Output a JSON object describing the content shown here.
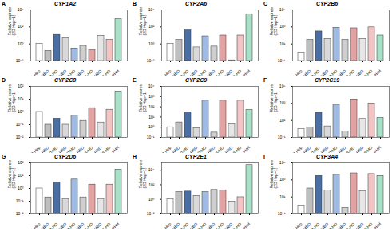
{
  "chart_data": [
    {
      "type": "bar",
      "panel": "A",
      "title": "CYP1A2",
      "y_label": "Relative expression (2D Hep=1)",
      "log": "y",
      "categories": [
        "2D Hep",
        "D-HBO",
        "D-HO",
        "D-HBO",
        "D-HO",
        "S-HBO",
        "S-HO",
        "S-HBO",
        "S-HO",
        "PHH"
      ],
      "colors": [
        "#ffffff",
        "#bfbfbf",
        "#4a6fa5",
        "#d9d9d9",
        "#9fbbe3",
        "#cfcfcf",
        "#e3a3a3",
        "#e6e6e6",
        "#f2c4c4",
        "#a8e0c8"
      ],
      "values": [
        1,
        0.15,
        12,
        5,
        0.3,
        0.6,
        0.2,
        9,
        3,
        900
      ],
      "ylim": [
        0.01,
        10000
      ],
      "yticks": [
        {
          "value": 0.01,
          "label": "10⁻²"
        },
        {
          "value": 1,
          "label": "10⁰"
        },
        {
          "value": 100,
          "label": "10²"
        },
        {
          "value": 10000,
          "label": "10⁴"
        }
      ]
    },
    {
      "type": "bar",
      "panel": "B",
      "title": "CYP2A6",
      "y_label": "Relative expression (2D Hep=1)",
      "log": "y",
      "categories": [
        "2D Hep",
        "D-HBO",
        "D-HO",
        "D-HBO",
        "D-HO",
        "S-HBO",
        "S-HO",
        "S-HBO",
        "S-HO",
        "PHH"
      ],
      "colors": [
        "#ffffff",
        "#bfbfbf",
        "#4a6fa5",
        "#d9d9d9",
        "#9fbbe3",
        "#cfcfcf",
        "#e3a3a3",
        "#e6e6e6",
        "#f2c4c4",
        "#a8e0c8"
      ],
      "values": [
        1,
        3,
        40,
        0.4,
        8,
        0.5,
        10,
        0.012,
        10,
        3000
      ],
      "ylim": [
        0.01,
        10000
      ],
      "yticks": [
        {
          "value": 0.01,
          "label": "10⁻²"
        },
        {
          "value": 1,
          "label": "10⁰"
        },
        {
          "value": 100,
          "label": "10²"
        },
        {
          "value": 10000,
          "label": "10⁴"
        }
      ]
    },
    {
      "type": "bar",
      "panel": "C",
      "title": "CYP2B6",
      "y_label": "Relative expression (2D Hep=1)",
      "log": "y",
      "categories": [
        "2D Hep",
        "D-HBO",
        "D-HO",
        "D-HBO",
        "D-HO",
        "S-HBO",
        "S-HO",
        "S-HBO",
        "S-HO",
        "PHH"
      ],
      "colors": [
        "#ffffff",
        "#bfbfbf",
        "#4a6fa5",
        "#d9d9d9",
        "#9fbbe3",
        "#cfcfcf",
        "#e3a3a3",
        "#e6e6e6",
        "#f2c4c4",
        "#a8e0c8"
      ],
      "values": [
        1,
        30,
        300,
        40,
        800,
        30,
        700,
        40,
        900,
        100
      ],
      "ylim": [
        0.1,
        100000
      ],
      "yticks": [
        {
          "value": 0.1,
          "label": "10⁻¹"
        },
        {
          "value": 10,
          "label": "10¹"
        },
        {
          "value": 1000,
          "label": "10³"
        },
        {
          "value": 100000,
          "label": "10⁵"
        }
      ]
    },
    {
      "type": "bar",
      "panel": "D",
      "title": "CYP2C8",
      "y_label": "Relative expression (2D Hep=1)",
      "log": "y",
      "categories": [
        "2D Hep",
        "D-HBO",
        "D-HO",
        "D-HBO",
        "D-HO",
        "S-HBO",
        "S-HO",
        "S-HBO",
        "S-HO",
        "PHH"
      ],
      "colors": [
        "#ffffff",
        "#bfbfbf",
        "#4a6fa5",
        "#d9d9d9",
        "#9fbbe3",
        "#cfcfcf",
        "#e3a3a3",
        "#e6e6e6",
        "#f2c4c4",
        "#a8e0c8"
      ],
      "values": [
        1,
        0.1,
        0.3,
        0.1,
        0.5,
        0.2,
        2,
        0.15,
        1.5,
        40
      ],
      "ylim": [
        0.01,
        100
      ],
      "yticks": [
        {
          "value": 0.01,
          "label": "10⁻²"
        },
        {
          "value": 0.1,
          "label": "10⁻¹"
        },
        {
          "value": 1,
          "label": "10⁰"
        },
        {
          "value": 10,
          "label": "10¹"
        },
        {
          "value": 100,
          "label": "10²"
        }
      ]
    },
    {
      "type": "bar",
      "panel": "E",
      "title": "CYP2C9",
      "y_label": "Relative expression (2D Hep=1)",
      "log": "y",
      "categories": [
        "2D Hep",
        "D-HBO",
        "D-HO",
        "D-HBO",
        "D-HO",
        "S-HBO",
        "S-HO",
        "S-HBO",
        "S-HO",
        "PHH"
      ],
      "colors": [
        "#ffffff",
        "#bfbfbf",
        "#4a6fa5",
        "#d9d9d9",
        "#9fbbe3",
        "#cfcfcf",
        "#e3a3a3",
        "#e6e6e6",
        "#f2c4c4",
        "#a8e0c8"
      ],
      "values": [
        1,
        3,
        30,
        0.8,
        400,
        0.3,
        400,
        2,
        400,
        50
      ],
      "ylim": [
        0.1,
        10000
      ],
      "yticks": [
        {
          "value": 0.1,
          "label": "10⁻¹"
        },
        {
          "value": 1,
          "label": "10⁰"
        },
        {
          "value": 10,
          "label": "10¹"
        },
        {
          "value": 100,
          "label": "10²"
        },
        {
          "value": 1000,
          "label": "10³"
        },
        {
          "value": 10000,
          "label": "10⁴"
        }
      ]
    },
    {
      "type": "bar",
      "panel": "F",
      "title": "CYP2C19",
      "y_label": "Relative expression (2D Hep=1)",
      "log": "y",
      "categories": [
        "2D Hep",
        "D-HBO",
        "D-HO",
        "D-HBO",
        "D-HO",
        "S-HBO",
        "S-HO",
        "S-HBO",
        "S-HO",
        "PHH"
      ],
      "colors": [
        "#ffffff",
        "#bfbfbf",
        "#4a6fa5",
        "#d9d9d9",
        "#9fbbe3",
        "#cfcfcf",
        "#e3a3a3",
        "#e6e6e6",
        "#f2c4c4",
        "#a8e0c8"
      ],
      "values": [
        1,
        1.5,
        80,
        2,
        700,
        0.5,
        3000,
        15,
        1000,
        20
      ],
      "ylim": [
        0.1,
        100000
      ],
      "yticks": [
        {
          "value": 0.1,
          "label": "10⁻¹"
        },
        {
          "value": 10,
          "label": "10¹"
        },
        {
          "value": 1000,
          "label": "10³"
        },
        {
          "value": 100000,
          "label": "10⁵"
        }
      ]
    },
    {
      "type": "bar",
      "panel": "G",
      "title": "CYP2D6",
      "y_label": "Relative expression (2D Hep=1)",
      "log": "y",
      "categories": [
        "2D Hep",
        "D-HBO",
        "D-HO",
        "D-HBO",
        "D-HO",
        "S-HBO",
        "S-HO",
        "S-HBO",
        "S-HO",
        "PHH"
      ],
      "colors": [
        "#ffffff",
        "#bfbfbf",
        "#4a6fa5",
        "#d9d9d9",
        "#9fbbe3",
        "#cfcfcf",
        "#e3a3a3",
        "#e6e6e6",
        "#f2c4c4",
        "#a8e0c8"
      ],
      "values": [
        1,
        0.2,
        3,
        0.15,
        5,
        0.2,
        2,
        0.15,
        2,
        30
      ],
      "ylim": [
        0.01,
        100
      ],
      "yticks": [
        {
          "value": 0.01,
          "label": "10⁻²"
        },
        {
          "value": 0.1,
          "label": "10⁻¹"
        },
        {
          "value": 1,
          "label": "10⁰"
        },
        {
          "value": 10,
          "label": "10¹"
        },
        {
          "value": 100,
          "label": "10²"
        }
      ]
    },
    {
      "type": "bar",
      "panel": "H",
      "title": "CYP2E1",
      "y_label": "Relative expression (2D Hep=1)",
      "log": "y",
      "categories": [
        "2D Hep",
        "D-HBO",
        "D-HO",
        "D-HBO",
        "D-HO",
        "S-HBO",
        "S-HO",
        "S-HBO",
        "S-HO",
        "PHH"
      ],
      "colors": [
        "#ffffff",
        "#bfbfbf",
        "#4a6fa5",
        "#d9d9d9",
        "#9fbbe3",
        "#cfcfcf",
        "#e3a3a3",
        "#e6e6e6",
        "#f2c4c4",
        "#a8e0c8"
      ],
      "values": [
        1,
        10,
        12,
        3,
        10,
        20,
        18,
        0.5,
        2,
        50000
      ],
      "ylim": [
        0.01,
        100000
      ],
      "yticks": [
        {
          "value": 0.01,
          "label": "10⁻²"
        },
        {
          "value": 1,
          "label": "10⁰"
        },
        {
          "value": 100,
          "label": "10²"
        },
        {
          "value": 10000,
          "label": "10⁴"
        }
      ]
    },
    {
      "type": "bar",
      "panel": "I",
      "title": "CYP3A4",
      "y_label": "Relative expression (2D Hep=1)",
      "log": "y",
      "categories": [
        "2D Hep",
        "D-HBO",
        "D-HO",
        "D-HBO",
        "D-HO",
        "S-HBO",
        "S-HO",
        "S-HBO",
        "S-HO",
        "PHH"
      ],
      "colors": [
        "#ffffff",
        "#bfbfbf",
        "#4a6fa5",
        "#d9d9d9",
        "#9fbbe3",
        "#cfcfcf",
        "#e3a3a3",
        "#e6e6e6",
        "#f2c4c4",
        "#a8e0c8"
      ],
      "values": [
        1,
        100,
        3000,
        60,
        4000,
        0.5,
        6000,
        50,
        5000,
        3000
      ],
      "ylim": [
        0.1,
        100000
      ],
      "yticks": [
        {
          "value": 0.1,
          "label": "10⁻¹"
        },
        {
          "value": 10,
          "label": "10¹"
        },
        {
          "value": 1000,
          "label": "10³"
        },
        {
          "value": 100000,
          "label": "10⁵"
        }
      ]
    }
  ]
}
